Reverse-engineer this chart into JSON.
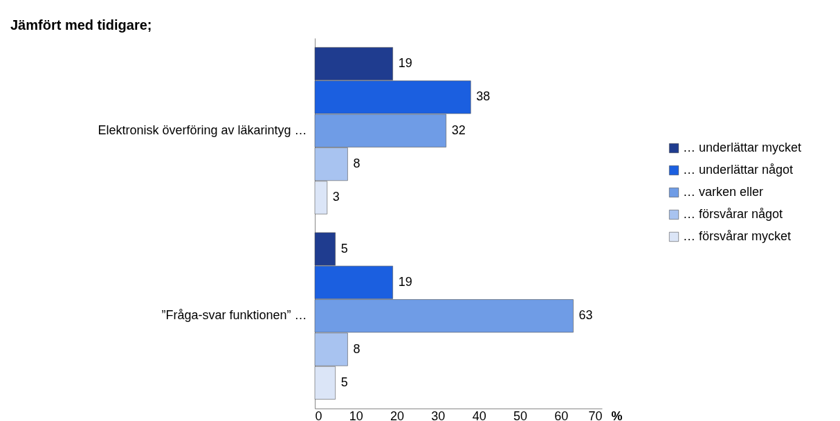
{
  "chart_data": {
    "type": "bar",
    "orientation": "horizontal",
    "title": "Jämfört med tidigare;",
    "xlabel": "%",
    "categories": [
      "Elektronisk överföring av läkarintyg …",
      "”Fråga-svar funktionen” …"
    ],
    "series": [
      {
        "name": "… underlättar mycket",
        "color": "#1f3c8f",
        "values": [
          19,
          5
        ]
      },
      {
        "name": "… underlättar något",
        "color": "#1b5fe0",
        "values": [
          38,
          19
        ]
      },
      {
        "name": "… varken eller",
        "color": "#6f9ce6",
        "values": [
          32,
          63
        ]
      },
      {
        "name": "… försvårar något",
        "color": "#a8c3f0",
        "values": [
          8,
          8
        ]
      },
      {
        "name": "… försvårar mycket",
        "color": "#dbe5f7",
        "values": [
          3,
          5
        ]
      }
    ],
    "xlim": [
      0,
      70
    ],
    "xticks": [
      0,
      10,
      20,
      30,
      40,
      50,
      60,
      70
    ],
    "data_labels": true,
    "legend": "right",
    "grid": false
  }
}
